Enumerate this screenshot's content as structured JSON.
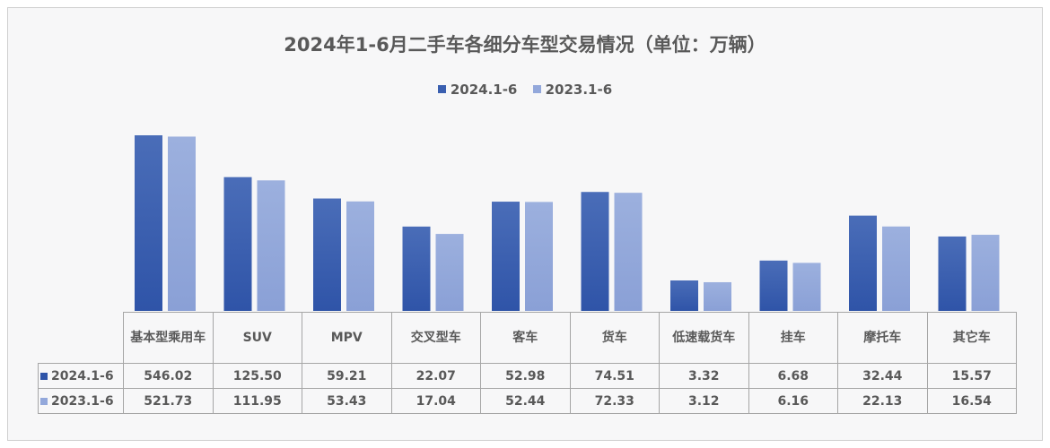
{
  "chart_data": {
    "type": "bar",
    "title": "2024年1-6月二手车各细分车型交易情况（单位：万辆）",
    "categories": [
      "基本型乘用车",
      "SUV",
      "MPV",
      "交叉型车",
      "客车",
      "货车",
      "低速载货车",
      "挂车",
      "摩托车",
      "其它车"
    ],
    "series": [
      {
        "name": "2024.1-6",
        "color": "#3a5fb0",
        "values": [
          546.02,
          125.5,
          59.21,
          22.07,
          52.98,
          74.51,
          3.32,
          6.68,
          32.44,
          15.57
        ]
      },
      {
        "name": "2023.1-6",
        "color": "#93a8db",
        "values": [
          521.73,
          111.95,
          53.43,
          17.04,
          52.44,
          72.33,
          3.12,
          6.16,
          22.13,
          16.54
        ]
      }
    ],
    "yscale": "log",
    "legend": "top",
    "data_table": true,
    "grid": false,
    "value_labels": [
      "546.02",
      "125.50",
      "59.21",
      "22.07",
      "52.98",
      "74.51",
      "3.32",
      "6.68",
      "32.44",
      "15.57",
      "521.73",
      "111.95",
      "53.43",
      "17.04",
      "52.44",
      "72.33",
      "3.12",
      "6.16",
      "22.13",
      "16.54"
    ]
  }
}
